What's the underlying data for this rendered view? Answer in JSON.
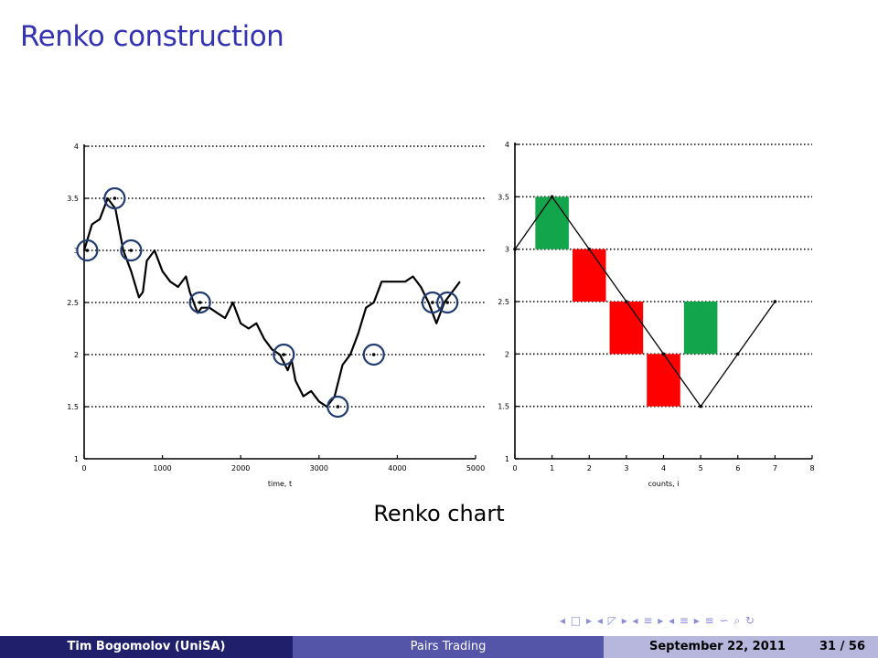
{
  "frame": {
    "title": "Renko construction"
  },
  "figure": {
    "caption": "Renko chart"
  },
  "nav": {
    "symbols": "◂ □ ▸ ◂ ◸ ▸ ◂ ≡ ▸ ◂ ≡ ▸  ≡  ∽ ⌕ ↻"
  },
  "footer": {
    "author": "Tim Bogomolov (UniSA)",
    "title": "Pairs Trading",
    "date": "September 22, 2011",
    "page": "31 / 56"
  },
  "chart_data": [
    {
      "type": "line",
      "title": "",
      "xlabel": "time, t",
      "ylabel": "",
      "xlim": [
        0,
        5000
      ],
      "ylim": [
        1,
        4
      ],
      "x_ticks": [
        0,
        1000,
        2000,
        3000,
        4000,
        5000
      ],
      "y_ticks": [
        1,
        1.5,
        2,
        2.5,
        3,
        3.5,
        4
      ],
      "x_tick_labels": [
        "0",
        "1000",
        "2000",
        "3000",
        "4000",
        "5000"
      ],
      "y_tick_labels": [
        "1",
        "1.5",
        "2",
        "2.5",
        "3",
        "3.5",
        "4"
      ],
      "grid": "horizontal dotted",
      "series": [
        {
          "x": [
            0,
            100,
            200,
            300,
            400,
            500,
            600,
            700,
            750,
            800,
            900,
            1000,
            1100,
            1200,
            1300,
            1350,
            1400,
            1450,
            1500,
            1600,
            1700,
            1800,
            1900,
            2000,
            2100,
            2200,
            2300,
            2400,
            2500,
            2600,
            2650,
            2700,
            2800,
            2900,
            3000,
            3100,
            3200,
            3300,
            3400,
            3500,
            3600,
            3700,
            3800,
            3900,
            4000,
            4100,
            4200,
            4300,
            4400,
            4500,
            4600,
            4700,
            4800
          ],
          "values": [
            3.0,
            3.25,
            3.3,
            3.5,
            3.4,
            3.0,
            2.8,
            2.55,
            2.6,
            2.9,
            3.0,
            2.8,
            2.7,
            2.65,
            2.75,
            2.6,
            2.5,
            2.4,
            2.45,
            2.45,
            2.4,
            2.35,
            2.5,
            2.3,
            2.25,
            2.3,
            2.15,
            2.05,
            2.0,
            1.85,
            1.95,
            1.75,
            1.6,
            1.65,
            1.55,
            1.5,
            1.6,
            1.9,
            2.0,
            2.2,
            2.45,
            2.5,
            2.7,
            2.7,
            2.7,
            2.7,
            2.75,
            2.65,
            2.5,
            2.3,
            2.5,
            2.6,
            2.7
          ]
        }
      ],
      "markers": {
        "x": [
          40,
          390,
          600,
          1480,
          2550,
          3240,
          3700,
          4450,
          4640
        ],
        "values": [
          3.0,
          3.5,
          3.0,
          2.5,
          2.0,
          1.5,
          2.0,
          2.5,
          2.5
        ]
      }
    },
    {
      "type": "renko",
      "title": "",
      "xlabel": "counts, i",
      "ylabel": "",
      "xlim": [
        0,
        8
      ],
      "ylim": [
        1,
        4
      ],
      "x_ticks": [
        0,
        1,
        2,
        3,
        4,
        5,
        6,
        7,
        8
      ],
      "y_ticks": [
        1,
        1.5,
        2,
        2.5,
        3,
        3.5,
        4
      ],
      "x_tick_labels": [
        "0",
        "1",
        "2",
        "3",
        "4",
        "5",
        "6",
        "7",
        "8"
      ],
      "y_tick_labels": [
        "1",
        "1.5",
        "2",
        "2.5",
        "3",
        "3.5",
        "4"
      ],
      "grid": "horizontal dotted",
      "line": {
        "x": [
          0,
          1,
          2,
          3,
          4,
          5,
          6,
          7
        ],
        "values": [
          3.0,
          3.5,
          3.0,
          2.5,
          2.0,
          1.5,
          2.0,
          2.5
        ]
      },
      "bricks": [
        {
          "count": 1,
          "low": 3.0,
          "high": 3.5,
          "direction": "up",
          "color": "#12a54b"
        },
        {
          "count": 2,
          "low": 2.5,
          "high": 3.0,
          "direction": "down",
          "color": "#ff0000"
        },
        {
          "count": 3,
          "low": 2.0,
          "high": 2.5,
          "direction": "down",
          "color": "#ff0000"
        },
        {
          "count": 4,
          "low": 1.5,
          "high": 2.0,
          "direction": "down",
          "color": "#ff0000"
        },
        {
          "count": 5,
          "low": 2.0,
          "high": 2.5,
          "direction": "up",
          "color": "#12a54b"
        }
      ]
    }
  ]
}
